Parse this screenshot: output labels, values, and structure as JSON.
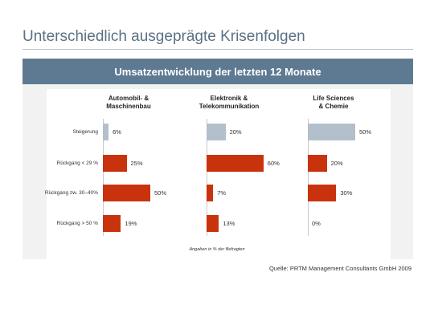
{
  "page": {
    "title": "Unterschiedlich ausgeprägte Krisenfolgen",
    "source": "Quelle: PRTM Management Consultants GmbH 2009"
  },
  "chart_data": {
    "type": "bar",
    "orientation": "horizontal",
    "title": "Umsatzentwicklung der letzten 12 Monate",
    "note": "Angaben in % der Befragten",
    "unit": "%",
    "categories": [
      "Steigerung",
      "Rückgang < 29 %",
      "Rückgang zw. 30–40%",
      "Rückgang > 50 %"
    ],
    "series": [
      {
        "name": "Automobil- &\nMaschinenbau",
        "values": [
          6,
          25,
          50,
          19
        ]
      },
      {
        "name": "Elektronik &\nTelekommunikation",
        "values": [
          20,
          60,
          7,
          13
        ]
      },
      {
        "name": "Life Sciences\n& Chemie",
        "values": [
          50,
          20,
          30,
          0
        ]
      }
    ],
    "colors": {
      "increase": "#b3bfcb",
      "decrease": "#c8330d"
    }
  }
}
